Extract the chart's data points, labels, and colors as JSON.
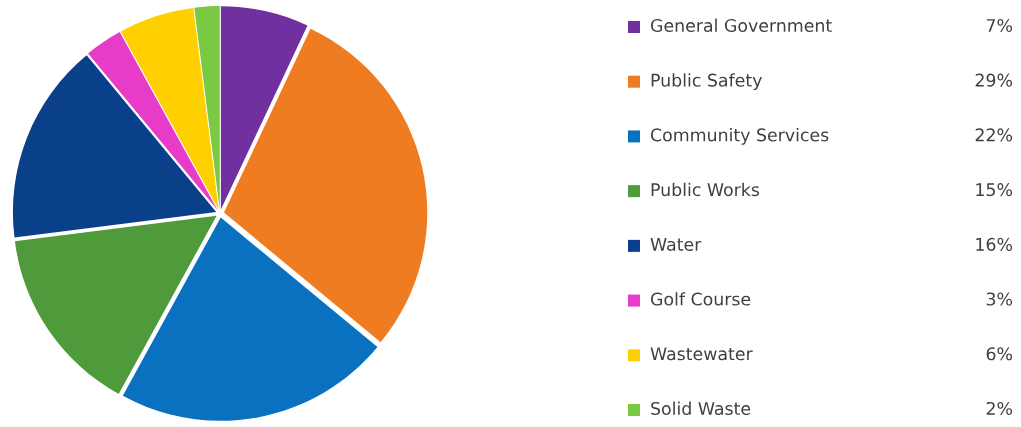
{
  "chart_data": {
    "type": "pie",
    "categories": [
      "General Government",
      "Public Safety",
      "Community Services",
      "Public Works",
      "Water",
      "Golf Course",
      "Wastewater",
      "Solid Waste"
    ],
    "values": [
      7,
      29,
      22,
      15,
      16,
      3,
      6,
      2
    ],
    "colors": [
      "#7030a0",
      "#f07c22",
      "#0a70c0",
      "#4f9a3a",
      "#0a3f8a",
      "#e83cc8",
      "#ffd000",
      "#7ac943"
    ],
    "value_labels": [
      "7%",
      "29%",
      "22%",
      "15%",
      "16%",
      "3%",
      "6%",
      "2%"
    ],
    "legend": "right"
  }
}
